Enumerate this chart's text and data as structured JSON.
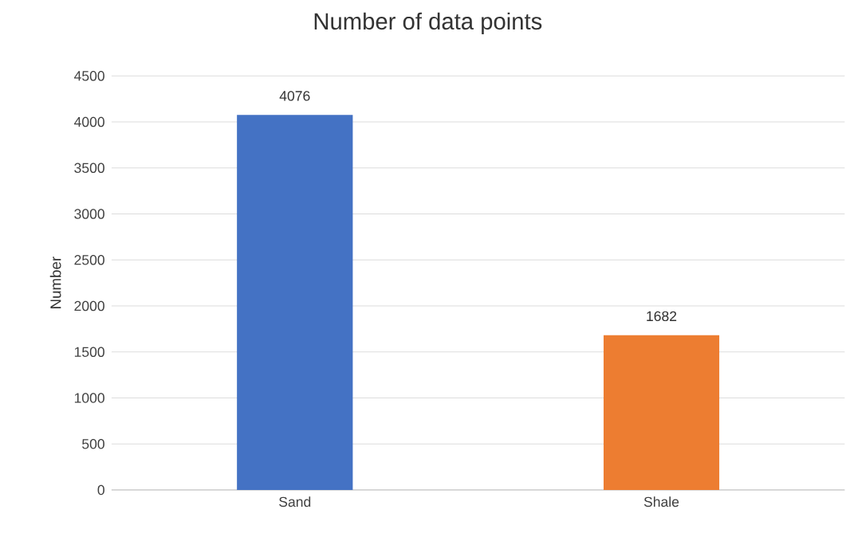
{
  "chart_data": {
    "type": "bar",
    "title": "Number of data points",
    "ylabel": "Number",
    "categories": [
      "Sand",
      "Shale"
    ],
    "values": [
      4076,
      1682
    ],
    "colors": [
      "#4472c4",
      "#ed7d31"
    ],
    "ylim": [
      0,
      4500
    ],
    "yticks": [
      0,
      500,
      1000,
      1500,
      2000,
      2500,
      3000,
      3500,
      4000,
      4500
    ],
    "grid": "y",
    "data_labels": true
  }
}
